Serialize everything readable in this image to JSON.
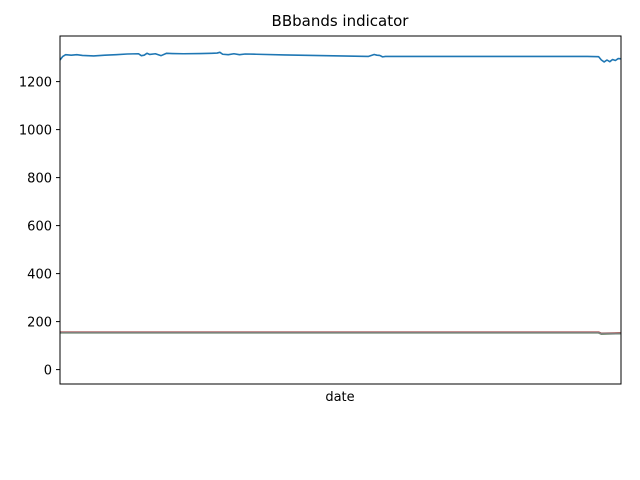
{
  "chart_data": {
    "type": "line",
    "title": "BBbands indicator",
    "xlabel": "date",
    "ylabel": "",
    "ylim": [
      -60,
      1390
    ],
    "yticks": [
      0,
      200,
      400,
      600,
      800,
      1000,
      1200
    ],
    "xlim": [
      0,
      100
    ],
    "grid": false,
    "legend": "none",
    "series": [
      {
        "color": "#1f77b4",
        "x": [
          0,
          0.5,
          1,
          2,
          3,
          4,
          5,
          6,
          8,
          10,
          12,
          14,
          14.5,
          15,
          15.5,
          16,
          17,
          18,
          19,
          20,
          22,
          25,
          27,
          28,
          28.5,
          29,
          30,
          31,
          32,
          33,
          35,
          40,
          45,
          50,
          55,
          56,
          56.5,
          57,
          57.5,
          58,
          60,
          65,
          70,
          75,
          80,
          85,
          90,
          93,
          94,
          96,
          96.5,
          97,
          97.5,
          98,
          98.5,
          99,
          99.5,
          100
        ],
        "values": [
          1290,
          1305,
          1312,
          1310,
          1312,
          1309,
          1308,
          1307,
          1310,
          1312,
          1315,
          1316,
          1308,
          1310,
          1318,
          1313,
          1316,
          1308,
          1318,
          1317,
          1316,
          1317,
          1318,
          1319,
          1322,
          1314,
          1312,
          1316,
          1312,
          1315,
          1314,
          1311,
          1309,
          1307,
          1305,
          1313,
          1310,
          1309,
          1303,
          1305,
          1305,
          1305,
          1305,
          1305,
          1305,
          1305,
          1305,
          1305,
          1305,
          1304,
          1290,
          1282,
          1290,
          1283,
          1292,
          1288,
          1296,
          1295
        ]
      },
      {
        "color": "#ff7f0e",
        "x": [
          0,
          50,
          96,
          96.5,
          100
        ],
        "values": [
          155,
          155,
          155,
          150,
          152
        ]
      },
      {
        "color": "#2ca02c",
        "x": [
          0,
          50,
          96,
          96.5,
          100
        ],
        "values": [
          153,
          153,
          153,
          148,
          150
        ]
      },
      {
        "color": "#d62728",
        "x": [
          0,
          50,
          96,
          96.5,
          100
        ],
        "values": [
          156,
          156,
          156,
          151,
          153
        ]
      },
      {
        "color": "#9467bd",
        "x": [
          0,
          50,
          96,
          96.5,
          100
        ],
        "values": [
          154,
          154,
          154,
          149,
          151
        ]
      },
      {
        "color": "#8c564b",
        "x": [
          0,
          50,
          96,
          96.5,
          100
        ],
        "values": [
          155,
          155,
          155,
          150,
          152
        ]
      },
      {
        "color": "#7f7f7f",
        "x": [
          0,
          50,
          96,
          96.5,
          100
        ],
        "values": [
          154,
          154,
          154,
          150,
          151
        ]
      }
    ]
  }
}
